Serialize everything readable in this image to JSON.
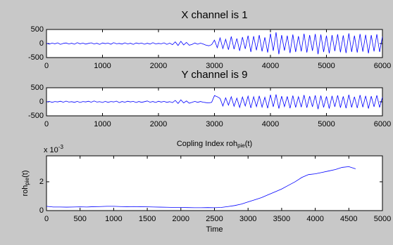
{
  "chart_data": [
    {
      "type": "line",
      "title": "X channel is 1",
      "x": [
        0,
        50,
        100,
        150,
        200,
        250,
        300,
        350,
        400,
        450,
        500,
        550,
        600,
        650,
        700,
        750,
        800,
        850,
        900,
        950,
        1000,
        1050,
        1100,
        1150,
        1200,
        1250,
        1300,
        1350,
        1400,
        1450,
        1500,
        1550,
        1600,
        1650,
        1700,
        1750,
        1800,
        1850,
        1900,
        1950,
        2000,
        2050,
        2100,
        2150,
        2200,
        2250,
        2300,
        2350,
        2400,
        2450,
        2500,
        2550,
        2600,
        2650,
        2700,
        2750,
        2800,
        2850,
        2900,
        2950,
        3000,
        3050,
        3100,
        3150,
        3200,
        3250,
        3300,
        3350,
        3400,
        3450,
        3500,
        3550,
        3600,
        3650,
        3700,
        3750,
        3800,
        3850,
        3900,
        3950,
        4000,
        4050,
        4100,
        4150,
        4200,
        4250,
        4300,
        4350,
        4400,
        4450,
        4500,
        4550,
        4600,
        4650,
        4700,
        4750,
        4800,
        4850,
        4900,
        4950,
        5000,
        5050,
        5100,
        5150,
        5200,
        5250,
        5300,
        5350,
        5400,
        5450,
        5500,
        5550,
        5600,
        5650,
        5700,
        5750,
        5800,
        5850,
        5900,
        5950,
        6000
      ],
      "series": [
        {
          "name": "X",
          "color": "#0000ff",
          "values": [
            10,
            -20,
            15,
            -10,
            25,
            -30,
            5,
            20,
            -15,
            10,
            -25,
            30,
            -10,
            15,
            -20,
            5,
            25,
            -15,
            10,
            -30,
            20,
            -5,
            15,
            -25,
            30,
            -10,
            5,
            -20,
            25,
            -15,
            10,
            -30,
            20,
            -5,
            15,
            -25,
            10,
            -20,
            30,
            -15,
            5,
            -10,
            25,
            -30,
            15,
            -40,
            60,
            -70,
            80,
            -50,
            40,
            -60,
            -30,
            20,
            -25,
            15,
            -20,
            -60,
            -80,
            -40,
            120,
            -150,
            200,
            -180,
            150,
            -220,
            250,
            -200,
            180,
            -260,
            230,
            -190,
            280,
            -300,
            260,
            -240,
            300,
            -280,
            220,
            -320,
            350,
            -260,
            400,
            -380,
            300,
            -250,
            280,
            -340,
            320,
            -300,
            260,
            -280,
            350,
            -320,
            300,
            -260,
            340,
            -380,
            320,
            -300,
            280,
            -350,
            300,
            -270,
            330,
            -310,
            290,
            -340,
            360,
            -300,
            280,
            -320,
            340,
            -290,
            310,
            -350,
            300,
            -280,
            330,
            -300,
            250
          ]
        }
      ],
      "xlim": [
        0,
        6000
      ],
      "xticks": [
        0,
        1000,
        2000,
        3000,
        4000,
        5000,
        6000
      ],
      "ylim": [
        -500,
        500
      ],
      "yticks": [
        -500,
        0,
        500
      ]
    },
    {
      "type": "line",
      "title": "Y channel is 9",
      "x": [
        0,
        50,
        100,
        150,
        200,
        250,
        300,
        350,
        400,
        450,
        500,
        550,
        600,
        650,
        700,
        750,
        800,
        850,
        900,
        950,
        1000,
        1050,
        1100,
        1150,
        1200,
        1250,
        1300,
        1350,
        1400,
        1450,
        1500,
        1550,
        1600,
        1650,
        1700,
        1750,
        1800,
        1850,
        1900,
        1950,
        2000,
        2050,
        2100,
        2150,
        2200,
        2250,
        2300,
        2350,
        2400,
        2450,
        2500,
        2550,
        2600,
        2650,
        2700,
        2750,
        2800,
        2850,
        2900,
        2950,
        3000,
        3050,
        3100,
        3150,
        3200,
        3250,
        3300,
        3350,
        3400,
        3450,
        3500,
        3550,
        3600,
        3650,
        3700,
        3750,
        3800,
        3850,
        3900,
        3950,
        4000,
        4050,
        4100,
        4150,
        4200,
        4250,
        4300,
        4350,
        4400,
        4450,
        4500,
        4550,
        4600,
        4650,
        4700,
        4750,
        4800,
        4850,
        4900,
        4950,
        5000,
        5050,
        5100,
        5150,
        5200,
        5250,
        5300,
        5350,
        5400,
        5450,
        5500,
        5550,
        5600,
        5650,
        5700,
        5750,
        5800,
        5850,
        5900,
        5950,
        6000
      ],
      "series": [
        {
          "name": "Y",
          "color": "#0000ff",
          "values": [
            -10,
            15,
            -20,
            10,
            -5,
            20,
            -15,
            25,
            -10,
            5,
            -20,
            15,
            -25,
            10,
            -5,
            20,
            -15,
            30,
            -10,
            5,
            -25,
            15,
            -20,
            10,
            -5,
            25,
            -30,
            10,
            -15,
            20,
            -5,
            15,
            -25,
            10,
            -20,
            5,
            30,
            -15,
            10,
            -25,
            20,
            -10,
            15,
            -20,
            5,
            -30,
            50,
            -60,
            70,
            -40,
            30,
            -50,
            -20,
            15,
            -20,
            10,
            -15,
            -30,
            -40,
            -20,
            220,
            180,
            120,
            -150,
            140,
            -120,
            180,
            -160,
            130,
            -200,
            170,
            -150,
            200,
            -220,
            180,
            -170,
            210,
            -190,
            160,
            -230,
            250,
            -180,
            260,
            -240,
            200,
            -170,
            190,
            -230,
            220,
            -200,
            180,
            -190,
            240,
            -210,
            200,
            -180,
            230,
            -260,
            220,
            -200,
            190,
            -240,
            210,
            -180,
            230,
            -210,
            190,
            -230,
            250,
            -200,
            180,
            -220,
            240,
            -190,
            210,
            -240,
            200,
            -180,
            230,
            -200,
            170
          ]
        }
      ],
      "xlim": [
        0,
        6000
      ],
      "xticks": [
        0,
        1000,
        2000,
        3000,
        4000,
        5000,
        6000
      ],
      "ylim": [
        -500,
        500
      ],
      "yticks": [
        -500,
        0,
        500
      ]
    },
    {
      "type": "line",
      "title": "Copling Index roh",
      "title_subscript": "pie",
      "title_suffix": "(t)",
      "xlabel": "Time",
      "ylabel": "roh",
      "ylabel_subscript": "pie",
      "ylabel_suffix": "(t)",
      "y_multiplier": "x 10",
      "y_multiplier_exponent": "-3",
      "x": [
        0,
        100,
        200,
        300,
        400,
        500,
        600,
        700,
        800,
        900,
        1000,
        1100,
        1200,
        1300,
        1400,
        1500,
        1600,
        1700,
        1800,
        1900,
        2000,
        2100,
        2200,
        2300,
        2400,
        2500,
        2600,
        2700,
        2800,
        2900,
        3000,
        3100,
        3200,
        3300,
        3400,
        3500,
        3600,
        3700,
        3800,
        3900,
        4000,
        4100,
        4200,
        4300,
        4400,
        4500,
        4600
      ],
      "series": [
        {
          "name": "roh",
          "color": "#0000ff",
          "values": [
            0.3,
            0.25,
            0.25,
            0.24,
            0.25,
            0.26,
            0.25,
            0.27,
            0.28,
            0.3,
            0.3,
            0.28,
            0.27,
            0.28,
            0.27,
            0.26,
            0.25,
            0.24,
            0.23,
            0.22,
            0.22,
            0.21,
            0.2,
            0.2,
            0.21,
            0.2,
            0.22,
            0.28,
            0.35,
            0.45,
            0.6,
            0.75,
            0.9,
            1.1,
            1.3,
            1.5,
            1.75,
            2.0,
            2.3,
            2.5,
            2.55,
            2.65,
            2.75,
            2.85,
            3.0,
            3.05,
            2.9
          ]
        }
      ],
      "xlim": [
        0,
        5000
      ],
      "xticks": [
        0,
        500,
        1000,
        1500,
        2000,
        2500,
        3000,
        3500,
        4000,
        4500,
        5000
      ],
      "ylim": [
        0,
        3.8
      ],
      "yticks": [
        0,
        2
      ]
    }
  ]
}
